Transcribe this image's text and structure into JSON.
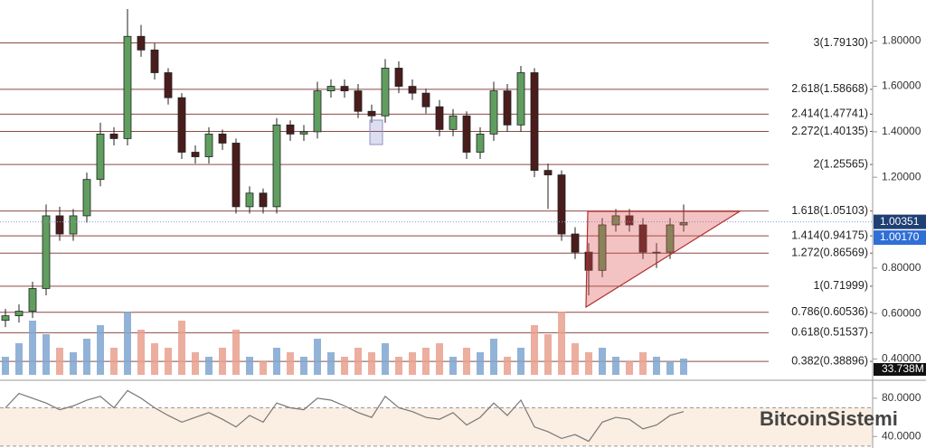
{
  "chart_data": {
    "type": "candlestick",
    "x": [
      0,
      1,
      2,
      3,
      4,
      5,
      6,
      7,
      8,
      9,
      10,
      11,
      12,
      13,
      14,
      15,
      16,
      17,
      18,
      19,
      20,
      21,
      22,
      23,
      24,
      25,
      26,
      27,
      28,
      29,
      30,
      31,
      32,
      33,
      34,
      35,
      36,
      37,
      38,
      39,
      40,
      41,
      42,
      43,
      44,
      45,
      46,
      47,
      48,
      49,
      50
    ],
    "open": [
      0.57,
      0.59,
      0.61,
      0.71,
      1.03,
      0.95,
      1.03,
      1.19,
      1.39,
      1.37,
      1.82,
      1.76,
      1.66,
      1.55,
      1.31,
      1.29,
      1.39,
      1.35,
      1.07,
      1.13,
      1.07,
      1.43,
      1.39,
      1.4,
      1.58,
      1.6,
      1.58,
      1.49,
      1.47,
      1.68,
      1.6,
      1.57,
      1.51,
      1.41,
      1.47,
      1.31,
      1.39,
      1.58,
      1.43,
      1.66,
      1.23,
      1.21,
      0.95,
      0.87,
      0.79,
      0.99,
      1.03,
      0.99,
      0.87,
      0.87,
      0.99
    ],
    "close": [
      0.59,
      0.61,
      0.71,
      1.03,
      0.95,
      1.03,
      1.19,
      1.39,
      1.37,
      1.82,
      1.76,
      1.66,
      1.55,
      1.31,
      1.29,
      1.39,
      1.35,
      1.07,
      1.13,
      1.07,
      1.43,
      1.39,
      1.4,
      1.58,
      1.6,
      1.58,
      1.49,
      1.47,
      1.68,
      1.6,
      1.57,
      1.51,
      1.41,
      1.47,
      1.31,
      1.39,
      1.58,
      1.43,
      1.66,
      1.23,
      1.21,
      0.95,
      0.87,
      0.79,
      0.99,
      1.03,
      0.99,
      0.87,
      0.87,
      0.99,
      1.0
    ],
    "high": [
      0.62,
      0.64,
      0.74,
      1.08,
      1.07,
      1.06,
      1.22,
      1.44,
      1.42,
      1.94,
      1.87,
      1.79,
      1.68,
      1.57,
      1.34,
      1.42,
      1.41,
      1.37,
      1.16,
      1.15,
      1.46,
      1.45,
      1.43,
      1.62,
      1.63,
      1.63,
      1.61,
      1.52,
      1.72,
      1.71,
      1.63,
      1.59,
      1.54,
      1.5,
      1.49,
      1.42,
      1.62,
      1.61,
      1.69,
      1.68,
      1.26,
      1.23,
      0.98,
      0.91,
      1.02,
      1.06,
      1.06,
      1.02,
      0.91,
      1.02,
      1.08
    ],
    "low": [
      0.54,
      0.56,
      0.58,
      0.68,
      0.92,
      0.92,
      1.0,
      1.16,
      1.34,
      1.34,
      1.73,
      1.63,
      1.52,
      1.28,
      1.26,
      1.26,
      1.32,
      1.04,
      1.04,
      1.04,
      1.04,
      1.36,
      1.36,
      1.37,
      1.55,
      1.55,
      1.46,
      1.44,
      1.44,
      1.57,
      1.54,
      1.48,
      1.38,
      1.38,
      1.28,
      1.28,
      1.36,
      1.4,
      1.4,
      1.2,
      1.06,
      0.92,
      0.84,
      0.68,
      0.76,
      0.96,
      0.96,
      0.84,
      0.8,
      0.84,
      0.96
    ],
    "up_color": "#5f9e5f",
    "down_color": "#4a1c1c",
    "ylim": [
      0.33,
      1.98
    ],
    "yticks": [
      {
        "value": 1.8,
        "label": "1.80000"
      },
      {
        "value": 1.6,
        "label": "1.60000"
      },
      {
        "value": 1.4,
        "label": "1.40000"
      },
      {
        "value": 1.2,
        "label": "1.20000"
      },
      {
        "value": 0.8,
        "label": "0.80000"
      },
      {
        "value": 0.6,
        "label": "0.60000"
      },
      {
        "value": 0.4,
        "label": "0.40000"
      }
    ],
    "fib_levels": [
      {
        "value": 1.7913,
        "label": "3(1.79130)"
      },
      {
        "value": 1.58668,
        "label": "2.618(1.58668)"
      },
      {
        "value": 1.47741,
        "label": "2.414(1.47741)"
      },
      {
        "value": 1.40135,
        "label": "2.272(1.40135)"
      },
      {
        "value": 1.25565,
        "label": "2(1.25565)"
      },
      {
        "value": 1.05103,
        "label": "1.618(1.05103)"
      },
      {
        "value": 0.94175,
        "label": "1.414(0.94175)"
      },
      {
        "value": 0.86569,
        "label": "1.272(0.86569)"
      },
      {
        "value": 0.71999,
        "label": "1(0.71999)"
      },
      {
        "value": 0.60536,
        "label": "0.786(0.60536)"
      },
      {
        "value": 0.51537,
        "label": "0.618(0.51537)"
      },
      {
        "value": 0.38896,
        "label": "0.382(0.38896)"
      }
    ],
    "fib_color": "#8b4a44",
    "price_tags": [
      {
        "value": 1.00351,
        "label": "1.00351",
        "color": "#1f3f75"
      },
      {
        "value": 1.0017,
        "label": "1.00170",
        "color": "#2f6fd6"
      }
    ],
    "volume": [
      20,
      35,
      60,
      45,
      30,
      25,
      40,
      55,
      30,
      70,
      50,
      35,
      30,
      60,
      25,
      20,
      30,
      50,
      20,
      15,
      30,
      25,
      20,
      40,
      25,
      20,
      30,
      25,
      35,
      20,
      25,
      30,
      35,
      20,
      30,
      25,
      40,
      20,
      30,
      55,
      45,
      70,
      35,
      25,
      30,
      20,
      15,
      25,
      20,
      15,
      18
    ],
    "volume_ylim": [
      0,
      120
    ],
    "volume_up_color": "#7fa6d0",
    "volume_down_color": "#e8a08e",
    "volume_tag": "33.738M",
    "rsi": [
      70,
      85,
      80,
      75,
      68,
      72,
      78,
      82,
      70,
      88,
      80,
      70,
      62,
      55,
      60,
      65,
      58,
      50,
      62,
      55,
      75,
      70,
      68,
      80,
      78,
      72,
      65,
      60,
      82,
      70,
      66,
      60,
      58,
      65,
      52,
      60,
      75,
      62,
      78,
      50,
      45,
      38,
      42,
      35,
      55,
      60,
      58,
      48,
      52,
      62,
      66
    ],
    "rsi_ylim": [
      28,
      95
    ],
    "rsi_yticks": [
      {
        "value": 80,
        "label": "80.0000"
      },
      {
        "value": 40,
        "label": "40.0000"
      }
    ],
    "rsi_band": [
      70,
      30
    ],
    "watermark": "BitcoinSistemi"
  }
}
